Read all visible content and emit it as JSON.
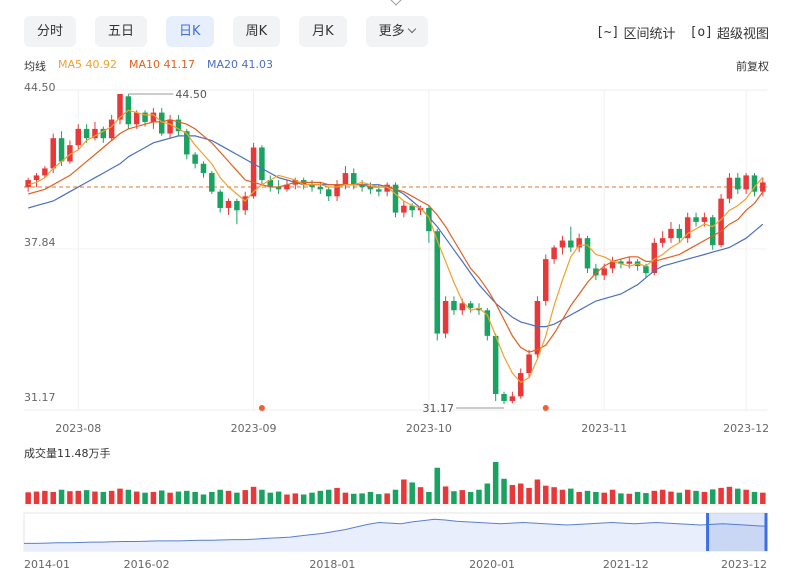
{
  "tabs": [
    {
      "label": "分时",
      "active": false
    },
    {
      "label": "五日",
      "active": false
    },
    {
      "label": "日K",
      "active": true
    },
    {
      "label": "周K",
      "active": false
    },
    {
      "label": "月K",
      "active": false
    },
    {
      "label": "更多",
      "active": false
    }
  ],
  "tools": [
    {
      "label": "区间统计",
      "icon": "range-stat-icon",
      "glyph": "[~]"
    },
    {
      "label": "超级视图",
      "icon": "super-view-icon",
      "glyph": "[o]"
    }
  ],
  "legend": {
    "title": "均线",
    "ma5": "MA5 40.92",
    "ma10": "MA10 41.17",
    "ma20": "MA20 41.03"
  },
  "adjust_label": "前复权",
  "volume_title": "成交量11.48万手",
  "colors": {
    "up": "#e8393a",
    "down": "#1aa260",
    "ma5": "#f0a030",
    "ma10": "#e06020",
    "ma20": "#4a6fc0",
    "ref_line": "#e07a30",
    "accent": "#3d6fe0"
  },
  "chart_data": {
    "type": "candlestick",
    "y_ticks": [
      "44.50",
      "37.84",
      "31.17"
    ],
    "ylim": [
      31.17,
      44.5
    ],
    "x_ticks": [
      "2023-08",
      "2023-09",
      "2023-10",
      "2023-11",
      "2023-12"
    ],
    "high_label": "44.50",
    "low_label": "31.17",
    "reference_value": 40.5,
    "candles": [
      [
        40.5,
        40.8,
        40.3,
        40.9
      ],
      [
        40.8,
        41.0,
        40.5,
        41.1
      ],
      [
        41.0,
        41.3,
        40.9,
        41.4
      ],
      [
        41.3,
        42.6,
        41.1,
        42.8
      ],
      [
        42.6,
        41.6,
        41.4,
        42.9
      ],
      [
        41.6,
        42.3,
        41.5,
        42.5
      ],
      [
        42.3,
        43.0,
        42.1,
        43.2
      ],
      [
        43.0,
        42.6,
        42.4,
        43.2
      ],
      [
        42.6,
        43.0,
        42.5,
        43.3
      ],
      [
        43.0,
        42.6,
        42.4,
        43.1
      ],
      [
        42.6,
        43.4,
        42.5,
        43.6
      ],
      [
        43.4,
        44.5,
        43.2,
        44.5
      ],
      [
        44.4,
        43.2,
        43.0,
        44.5
      ],
      [
        43.2,
        43.7,
        43.0,
        43.8
      ],
      [
        43.7,
        43.3,
        43.1,
        43.8
      ],
      [
        43.3,
        43.7,
        43.0,
        43.9
      ],
      [
        43.7,
        42.8,
        42.7,
        43.9
      ],
      [
        42.8,
        43.4,
        42.6,
        43.6
      ],
      [
        43.4,
        42.9,
        42.7,
        43.6
      ],
      [
        42.9,
        41.9,
        41.7,
        43.0
      ],
      [
        41.9,
        41.5,
        41.3,
        42.0
      ],
      [
        41.5,
        41.1,
        40.9,
        41.6
      ],
      [
        41.1,
        40.3,
        40.2,
        41.2
      ],
      [
        40.3,
        39.6,
        39.4,
        40.4
      ],
      [
        39.6,
        39.9,
        39.3,
        40.0
      ],
      [
        39.9,
        39.5,
        38.9,
        40.0
      ],
      [
        39.5,
        40.1,
        39.3,
        40.3
      ],
      [
        40.1,
        42.2,
        40.0,
        42.4
      ],
      [
        42.2,
        40.8,
        40.6,
        42.3
      ],
      [
        40.8,
        40.5,
        40.3,
        41.0
      ],
      [
        40.5,
        40.4,
        40.2,
        40.8
      ],
      [
        40.4,
        40.6,
        40.3,
        40.8
      ],
      [
        40.6,
        40.8,
        40.4,
        40.9
      ],
      [
        40.8,
        40.6,
        40.4,
        40.9
      ],
      [
        40.6,
        40.5,
        40.3,
        40.8
      ],
      [
        40.5,
        40.4,
        40.2,
        40.7
      ],
      [
        40.4,
        40.1,
        39.9,
        40.5
      ],
      [
        40.1,
        40.6,
        39.9,
        40.8
      ],
      [
        40.6,
        41.1,
        40.4,
        41.4
      ],
      [
        41.1,
        40.6,
        40.4,
        41.3
      ],
      [
        40.6,
        40.5,
        40.3,
        40.8
      ],
      [
        40.5,
        40.4,
        40.2,
        40.7
      ],
      [
        40.4,
        40.3,
        40.1,
        40.6
      ],
      [
        40.3,
        40.6,
        40.1,
        40.7
      ],
      [
        40.6,
        39.4,
        39.2,
        40.7
      ],
      [
        39.4,
        39.7,
        39.2,
        39.9
      ],
      [
        39.7,
        39.5,
        39.2,
        39.8
      ],
      [
        39.5,
        39.6,
        39.3,
        39.7
      ],
      [
        39.6,
        38.6,
        38.1,
        39.7
      ],
      [
        38.6,
        34.2,
        33.9,
        38.7
      ],
      [
        34.2,
        35.6,
        34.0,
        35.8
      ],
      [
        35.6,
        35.2,
        35.0,
        35.8
      ],
      [
        35.2,
        35.5,
        35.0,
        35.7
      ],
      [
        35.5,
        35.3,
        35.1,
        35.6
      ],
      [
        35.3,
        35.2,
        35.0,
        35.5
      ],
      [
        35.2,
        34.1,
        33.9,
        35.3
      ],
      [
        34.1,
        31.6,
        31.3,
        34.2
      ],
      [
        31.6,
        31.3,
        31.17,
        31.7
      ],
      [
        31.3,
        31.5,
        31.2,
        31.7
      ],
      [
        31.5,
        32.5,
        31.4,
        32.7
      ],
      [
        32.5,
        33.3,
        32.3,
        33.5
      ],
      [
        33.3,
        35.6,
        33.1,
        35.8
      ],
      [
        35.6,
        37.4,
        35.4,
        37.6
      ],
      [
        37.4,
        37.9,
        37.2,
        38.0
      ],
      [
        37.9,
        38.2,
        37.6,
        38.4
      ],
      [
        38.2,
        37.9,
        37.7,
        38.8
      ],
      [
        37.9,
        38.3,
        37.7,
        38.5
      ],
      [
        38.3,
        37.0,
        36.8,
        38.4
      ],
      [
        37.0,
        36.7,
        36.5,
        37.2
      ],
      [
        36.7,
        37.0,
        36.5,
        37.2
      ],
      [
        37.0,
        37.3,
        36.8,
        37.5
      ],
      [
        37.3,
        37.2,
        37.0,
        37.4
      ],
      [
        37.2,
        37.3,
        37.0,
        37.5
      ],
      [
        37.3,
        37.1,
        36.9,
        37.4
      ],
      [
        37.1,
        36.8,
        36.6,
        37.2
      ],
      [
        36.8,
        38.1,
        36.7,
        38.3
      ],
      [
        38.1,
        38.3,
        37.9,
        38.6
      ],
      [
        38.3,
        38.7,
        38.1,
        39.0
      ],
      [
        38.7,
        38.3,
        38.1,
        38.9
      ],
      [
        38.3,
        39.2,
        38.1,
        39.4
      ],
      [
        39.2,
        39.0,
        38.8,
        39.4
      ],
      [
        39.0,
        39.2,
        38.8,
        39.4
      ],
      [
        39.2,
        38.0,
        37.8,
        39.3
      ],
      [
        38.0,
        40.0,
        37.9,
        40.2
      ],
      [
        40.0,
        40.9,
        39.8,
        41.1
      ],
      [
        40.9,
        40.4,
        40.2,
        41.1
      ],
      [
        40.4,
        41.0,
        40.2,
        41.1
      ],
      [
        41.0,
        40.3,
        40.1,
        41.1
      ],
      [
        40.3,
        40.7,
        40.1,
        40.9
      ]
    ],
    "volumes": [
      3.2,
      3.4,
      3.6,
      3.3,
      3.9,
      3.5,
      3.6,
      3.8,
      3.4,
      3.3,
      3.6,
      4.2,
      3.9,
      3.4,
      3.1,
      3.3,
      3.7,
      3.1,
      3.4,
      3.6,
      3.3,
      2.6,
      3.3,
      3.9,
      3.6,
      3.1,
      3.8,
      4.7,
      3.9,
      3.1,
      3.4,
      2.6,
      2.9,
      2.6,
      3.1,
      3.6,
      3.9,
      4.4,
      3.1,
      2.8,
      2.9,
      3.3,
      2.7,
      2.9,
      3.9,
      6.7,
      5.9,
      4.6,
      3.3,
      9.9,
      4.8,
      3.5,
      3.8,
      3.3,
      3.9,
      5.6,
      11.48,
      6.9,
      5.2,
      5.6,
      4.4,
      6.7,
      5.0,
      4.6,
      3.9,
      4.2,
      3.3,
      3.6,
      3.3,
      3.1,
      3.9,
      2.9,
      2.8,
      3.3,
      3.0,
      3.6,
      3.9,
      3.4,
      3.1,
      3.9,
      3.6,
      3.3,
      4.0,
      4.4,
      4.7,
      4.2,
      3.9,
      3.3,
      3.1
    ],
    "ma5": [
      40.6,
      40.7,
      40.9,
      41.3,
      41.6,
      41.9,
      42.1,
      42.5,
      42.7,
      42.9,
      43.1,
      43.5,
      43.8,
      43.7,
      43.6,
      43.6,
      43.3,
      43.2,
      43.0,
      42.8,
      42.3,
      41.9,
      41.5,
      40.9,
      40.5,
      40.2,
      39.9,
      40.3,
      40.6,
      40.8,
      41.0,
      40.9,
      40.8,
      40.6,
      40.6,
      40.6,
      40.5,
      40.5,
      40.6,
      40.6,
      40.7,
      40.6,
      40.5,
      40.5,
      40.2,
      39.9,
      39.7,
      39.6,
      39.2,
      38.2,
      37.3,
      36.4,
      35.6,
      35.2,
      35.3,
      35.0,
      34.1,
      33.2,
      32.5,
      32.1,
      32.3,
      33.1,
      34.1,
      35.4,
      36.5,
      37.5,
      38.0,
      38.0,
      37.6,
      37.5,
      37.3,
      37.2,
      37.1,
      37.2,
      37.1,
      37.4,
      37.6,
      37.9,
      38.1,
      38.5,
      38.7,
      38.9,
      38.8,
      39.1,
      39.5,
      39.7,
      40.0,
      40.5,
      40.92
    ],
    "ma10": [
      40.2,
      40.3,
      40.4,
      40.6,
      40.8,
      41.0,
      41.3,
      41.6,
      41.9,
      42.2,
      42.5,
      42.8,
      43.0,
      43.1,
      43.2,
      43.3,
      43.3,
      43.4,
      43.3,
      43.2,
      43.0,
      42.7,
      42.4,
      42.0,
      41.6,
      41.2,
      40.8,
      40.7,
      40.6,
      40.5,
      40.5,
      40.6,
      40.7,
      40.7,
      40.7,
      40.7,
      40.6,
      40.6,
      40.6,
      40.6,
      40.6,
      40.5,
      40.5,
      40.5,
      40.4,
      40.3,
      40.1,
      39.9,
      39.7,
      39.3,
      38.8,
      38.2,
      37.6,
      37.0,
      36.6,
      36.1,
      35.5,
      34.8,
      34.1,
      33.6,
      33.4,
      33.5,
      33.7,
      34.2,
      34.8,
      35.4,
      35.9,
      36.4,
      36.8,
      37.1,
      37.3,
      37.4,
      37.5,
      37.5,
      37.3,
      37.3,
      37.4,
      37.5,
      37.6,
      37.8,
      38.0,
      38.2,
      38.4,
      38.6,
      38.9,
      39.1,
      39.5,
      39.8,
      41.17
    ],
    "ma20": [
      39.6,
      39.7,
      39.8,
      39.9,
      40.1,
      40.3,
      40.5,
      40.7,
      40.9,
      41.1,
      41.3,
      41.5,
      41.8,
      42.0,
      42.2,
      42.4,
      42.5,
      42.6,
      42.7,
      42.7,
      42.7,
      42.6,
      42.5,
      42.3,
      42.1,
      41.9,
      41.7,
      41.5,
      41.3,
      41.1,
      40.9,
      40.8,
      40.7,
      40.6,
      40.6,
      40.6,
      40.6,
      40.6,
      40.6,
      40.6,
      40.6,
      40.6,
      40.6,
      40.5,
      40.4,
      40.2,
      39.9,
      39.6,
      39.2,
      38.8,
      38.3,
      37.8,
      37.3,
      36.8,
      36.3,
      35.9,
      35.5,
      35.2,
      34.9,
      34.7,
      34.6,
      34.5,
      34.5,
      34.6,
      34.8,
      35.0,
      35.2,
      35.4,
      35.6,
      35.7,
      35.8,
      35.9,
      36.1,
      36.3,
      36.6,
      36.9,
      37.1,
      37.2,
      37.3,
      37.4,
      37.5,
      37.6,
      37.7,
      37.8,
      37.9,
      38.1,
      38.3,
      38.6,
      41.03
    ]
  },
  "overview": {
    "x_ticks": [
      "2014-01",
      "2016-02",
      "2018-01",
      "2020-01",
      "2021-12",
      "2023-12"
    ],
    "values": [
      12,
      12,
      12.5,
      13,
      13,
      13.5,
      14,
      14,
      14.5,
      15,
      15,
      15.5,
      16,
      16,
      16,
      16.5,
      17,
      17,
      17.5,
      18,
      18,
      19,
      20,
      21,
      22,
      24,
      26,
      28,
      31,
      34,
      38,
      42,
      45,
      44,
      43,
      46,
      48,
      50,
      49,
      47,
      46,
      45,
      44,
      43,
      44,
      45,
      44,
      43,
      42,
      41,
      42,
      43,
      44,
      45,
      44,
      43,
      44,
      45,
      44,
      43,
      42,
      41,
      42,
      43,
      42,
      41,
      40,
      39
    ],
    "ylim": [
      0,
      60
    ],
    "selection": [
      0.92,
      1.0
    ]
  }
}
